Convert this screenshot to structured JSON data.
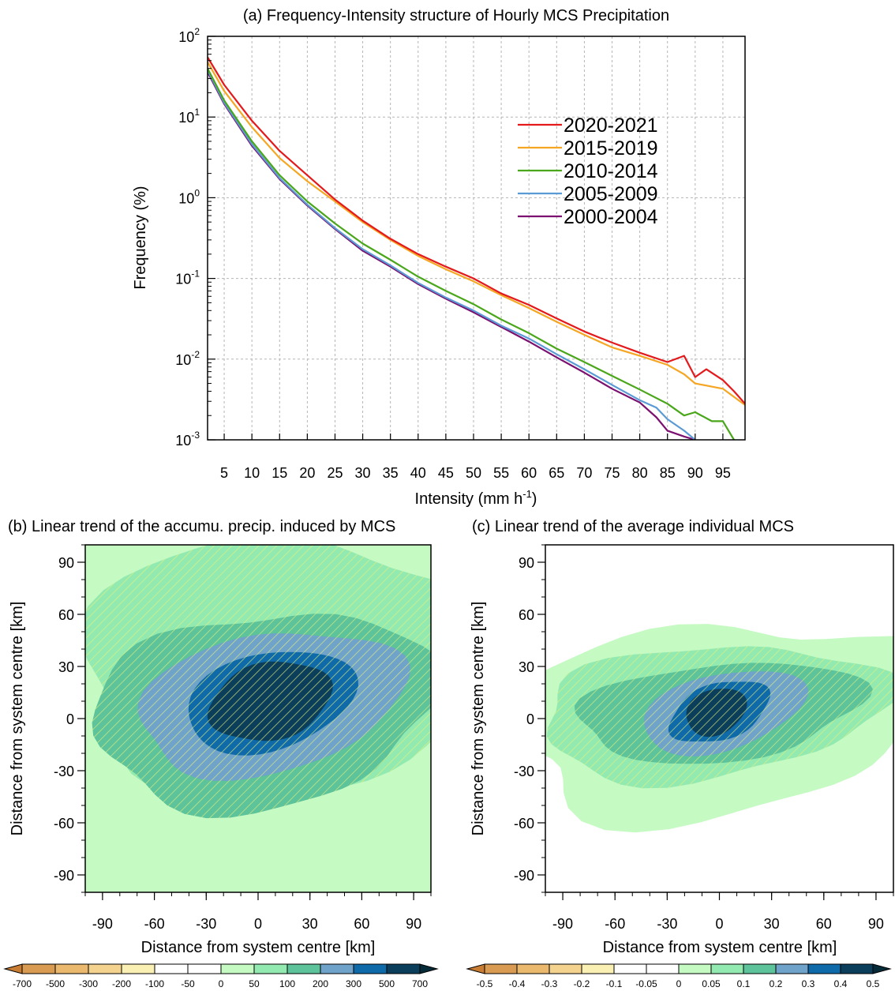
{
  "chart_data": [
    {
      "type": "line",
      "title": "(a) Frequency-Intensity structure of Hourly MCS Precipitation",
      "xlabel": "Intensity (mm h",
      "xlabel_sup": "-1",
      "xlabel_end": ")",
      "ylabel": "Frequency (%)",
      "y_scale": "log",
      "xlim": [
        2,
        99
      ],
      "ylim": [
        0.001,
        100
      ],
      "x_ticks": [
        5,
        10,
        15,
        20,
        25,
        30,
        35,
        40,
        45,
        50,
        55,
        60,
        65,
        70,
        75,
        80,
        85,
        90,
        95
      ],
      "y_tick_labels": [
        {
          "base": "10",
          "exp": "2",
          "value": 100
        },
        {
          "base": "10",
          "exp": "1",
          "value": 10
        },
        {
          "base": "10",
          "exp": "0",
          "value": 1
        },
        {
          "base": "10",
          "exp": "-1",
          "value": 0.1
        },
        {
          "base": "10",
          "exp": "-2",
          "value": 0.01
        },
        {
          "base": "10",
          "exp": "-3",
          "value": 0.001
        }
      ],
      "grid": true,
      "legend_position": "upper-right",
      "series": [
        {
          "name": "2020-2021",
          "color": "#e3191c",
          "points": [
            [
              2,
              55
            ],
            [
              5,
              25
            ],
            [
              10,
              9
            ],
            [
              15,
              3.8
            ],
            [
              20,
              1.9
            ],
            [
              25,
              0.95
            ],
            [
              30,
              0.52
            ],
            [
              35,
              0.31
            ],
            [
              40,
              0.2
            ],
            [
              45,
              0.14
            ],
            [
              50,
              0.1
            ],
            [
              55,
              0.065
            ],
            [
              60,
              0.047
            ],
            [
              65,
              0.032
            ],
            [
              70,
              0.022
            ],
            [
              75,
              0.016
            ],
            [
              80,
              0.012
            ],
            [
              85,
              0.0092
            ],
            [
              88,
              0.011
            ],
            [
              90,
              0.006
            ],
            [
              92,
              0.0075
            ],
            [
              95,
              0.0055
            ],
            [
              97,
              0.004
            ],
            [
              99,
              0.0028
            ]
          ]
        },
        {
          "name": "2015-2019",
          "color": "#f5a623",
          "points": [
            [
              2,
              48
            ],
            [
              5,
              21
            ],
            [
              10,
              7.5
            ],
            [
              15,
              3.1
            ],
            [
              20,
              1.6
            ],
            [
              25,
              0.9
            ],
            [
              30,
              0.5
            ],
            [
              35,
              0.3
            ],
            [
              40,
              0.19
            ],
            [
              45,
              0.13
            ],
            [
              50,
              0.092
            ],
            [
              55,
              0.062
            ],
            [
              60,
              0.043
            ],
            [
              65,
              0.029
            ],
            [
              70,
              0.02
            ],
            [
              75,
              0.014
            ],
            [
              80,
              0.011
            ],
            [
              85,
              0.0085
            ],
            [
              88,
              0.0065
            ],
            [
              90,
              0.005
            ],
            [
              95,
              0.0043
            ],
            [
              99,
              0.0027
            ]
          ]
        },
        {
          "name": "2010-2014",
          "color": "#4aa61a",
          "points": [
            [
              2,
              40
            ],
            [
              5,
              16
            ],
            [
              10,
              5
            ],
            [
              15,
              1.9
            ],
            [
              20,
              0.9
            ],
            [
              25,
              0.48
            ],
            [
              30,
              0.27
            ],
            [
              35,
              0.17
            ],
            [
              40,
              0.105
            ],
            [
              45,
              0.07
            ],
            [
              50,
              0.048
            ],
            [
              55,
              0.031
            ],
            [
              60,
              0.021
            ],
            [
              65,
              0.0135
            ],
            [
              70,
              0.0092
            ],
            [
              75,
              0.0062
            ],
            [
              80,
              0.0042
            ],
            [
              85,
              0.0028
            ],
            [
              88,
              0.002
            ],
            [
              90,
              0.0022
            ],
            [
              93,
              0.0017
            ],
            [
              95,
              0.0017
            ],
            [
              97,
              0.001
            ]
          ]
        },
        {
          "name": "2005-2009",
          "color": "#5b9bd5",
          "points": [
            [
              2,
              38
            ],
            [
              5,
              15
            ],
            [
              10,
              4.6
            ],
            [
              15,
              1.75
            ],
            [
              20,
              0.82
            ],
            [
              25,
              0.42
            ],
            [
              30,
              0.23
            ],
            [
              35,
              0.145
            ],
            [
              40,
              0.088
            ],
            [
              45,
              0.058
            ],
            [
              50,
              0.04
            ],
            [
              55,
              0.026
            ],
            [
              60,
              0.018
            ],
            [
              65,
              0.0115
            ],
            [
              70,
              0.0075
            ],
            [
              75,
              0.0048
            ],
            [
              80,
              0.0031
            ],
            [
              83,
              0.0025
            ],
            [
              85,
              0.0018
            ],
            [
              88,
              0.0013
            ],
            [
              90,
              0.001
            ]
          ]
        },
        {
          "name": "2000-2004",
          "color": "#7b1070",
          "points": [
            [
              2,
              36
            ],
            [
              5,
              14.5
            ],
            [
              10,
              4.4
            ],
            [
              15,
              1.7
            ],
            [
              20,
              0.8
            ],
            [
              25,
              0.41
            ],
            [
              30,
              0.22
            ],
            [
              35,
              0.14
            ],
            [
              40,
              0.085
            ],
            [
              45,
              0.056
            ],
            [
              50,
              0.038
            ],
            [
              55,
              0.025
            ],
            [
              60,
              0.0165
            ],
            [
              65,
              0.0105
            ],
            [
              70,
              0.0068
            ],
            [
              75,
              0.0043
            ],
            [
              80,
              0.0029
            ],
            [
              83,
              0.0019
            ],
            [
              85,
              0.0013
            ],
            [
              88,
              0.0011
            ],
            [
              90,
              0.001
            ]
          ]
        }
      ]
    },
    {
      "type": "heatmap",
      "title": "(b) Linear trend of the accumu. precip. induced by MCS",
      "xlabel": "Distance from system centre [km]",
      "ylabel": "Distance from system centre [km]",
      "xlim": [
        -100,
        100
      ],
      "ylim": [
        -100,
        100
      ],
      "x_ticks": [
        -90,
        -60,
        -30,
        0,
        30,
        60,
        90
      ],
      "y_ticks": [
        90,
        60,
        30,
        0,
        -30,
        -60,
        -90
      ],
      "levels": [
        -700,
        -500,
        -300,
        -200,
        -100,
        -50,
        0,
        50,
        100,
        200,
        300,
        500,
        700
      ],
      "level_labels": [
        "-700",
        "-500",
        "-300",
        "-200",
        "-100",
        "-50",
        "0",
        "50",
        "100",
        "200",
        "300",
        "500",
        "700"
      ],
      "colors": [
        "#c87d33",
        "#d99a52",
        "#ebb96e",
        "#f4d38e",
        "#fbf0b4",
        "#ffffff",
        "#ffffff",
        "#c5fac3",
        "#93eab0",
        "#5cc39a",
        "#6fa3c9",
        "#0e6aa8",
        "#0a3e5a",
        "#042b37"
      ],
      "center_x": 5,
      "center_y": 5,
      "peak_value": 760,
      "sig_hatched": true
    },
    {
      "type": "heatmap",
      "title": "(c) Linear trend of the average individual MCS",
      "xlabel": "Distance from system centre [km]",
      "ylabel": "Distance from system centre [km]",
      "xlim": [
        -100,
        100
      ],
      "ylim": [
        -100,
        100
      ],
      "x_ticks": [
        -90,
        -60,
        -30,
        0,
        30,
        60,
        90
      ],
      "y_ticks": [
        90,
        60,
        30,
        0,
        -30,
        -60,
        -90
      ],
      "levels": [
        -0.5,
        -0.4,
        -0.3,
        -0.2,
        -0.1,
        -0.05,
        0,
        0.05,
        0.1,
        0.2,
        0.3,
        0.4,
        0.5
      ],
      "level_labels": [
        "-0.5",
        "-0.4",
        "-0.3",
        "-0.2",
        "-0.1",
        "-0.05",
        "0",
        "0.05",
        "0.1",
        "0.2",
        "0.3",
        "0.4",
        "0.5"
      ],
      "colors": [
        "#c87d33",
        "#d99a52",
        "#ebb96e",
        "#f4d38e",
        "#fbf0b4",
        "#ffffff",
        "#ffffff",
        "#c5fac3",
        "#93eab0",
        "#5cc39a",
        "#6fa3c9",
        "#0e6aa8",
        "#0a3e5a",
        "#042b37"
      ],
      "center_x": 0,
      "center_y": 2,
      "peak_value": 0.52,
      "sig_hatched": true
    }
  ]
}
